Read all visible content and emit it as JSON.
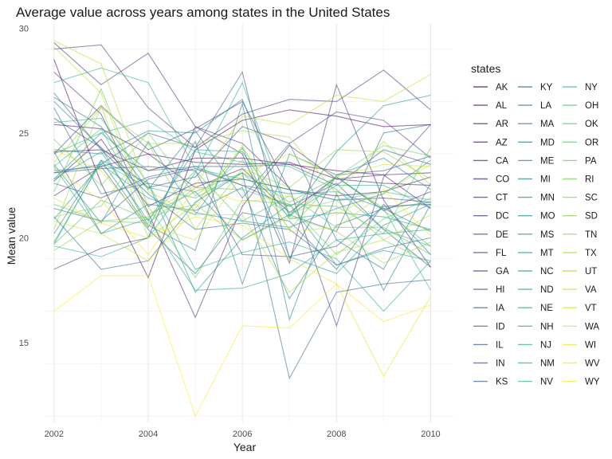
{
  "chart_data": {
    "type": "line",
    "title": "Average value across years among states in the United States",
    "xlabel": "Year",
    "ylabel": "Mean value",
    "x": [
      2002,
      2003,
      2004,
      2005,
      2006,
      2007,
      2008,
      2009,
      2010
    ],
    "x_ticks": [
      2002,
      2004,
      2006,
      2008,
      2010
    ],
    "y_ticks": [
      15,
      20,
      25,
      30
    ],
    "xlim": [
      2001.8,
      2010.5
    ],
    "ylim": [
      11.2,
      30.2
    ],
    "grid": true,
    "legend": {
      "title": "states",
      "placement": "right",
      "columns": 3
    },
    "series": [
      {
        "name": "AK",
        "values": [
          28.5,
          22.6,
          18.1,
          24.2,
          25.6,
          26.1,
          25.8,
          25.3,
          25.4
        ]
      },
      {
        "name": "AL",
        "values": [
          24.1,
          24.2,
          23.2,
          23.8,
          23.8,
          23.5,
          23.2,
          23.0,
          23.1
        ]
      },
      {
        "name": "AR",
        "values": [
          25.4,
          25.2,
          24.0,
          23.6,
          23.5,
          23.6,
          22.8,
          22.6,
          22.5
        ]
      },
      {
        "name": "AZ",
        "values": [
          22.7,
          24.7,
          21.5,
          22.6,
          22.8,
          22.3,
          22.0,
          22.2,
          22.9
        ]
      },
      {
        "name": "CA",
        "values": [
          22.0,
          23.4,
          24.0,
          22.4,
          23.3,
          21.2,
          22.9,
          21.3,
          22.2
        ]
      },
      {
        "name": "CO",
        "values": [
          27.9,
          25.9,
          21.2,
          16.2,
          21.5,
          24.4,
          22.8,
          23.0,
          21.4
        ]
      },
      {
        "name": "CT",
        "values": [
          29.3,
          27.3,
          28.8,
          25.3,
          24.0,
          18.8,
          27.3,
          21.8,
          18.6
        ]
      },
      {
        "name": "DC",
        "values": [
          29.0,
          29.2,
          26.2,
          24.3,
          25.9,
          26.6,
          26.5,
          28.0,
          26.1
        ]
      },
      {
        "name": "DE",
        "values": [
          18.5,
          19.5,
          20.0,
          25.3,
          24.5,
          22.4,
          15.8,
          22.9,
          25.4
        ]
      },
      {
        "name": "FL",
        "values": [
          24.0,
          26.3,
          24.2,
          25.2,
          26.5,
          22.3,
          21.8,
          21.9,
          21.7
        ]
      },
      {
        "name": "GA",
        "values": [
          25.7,
          24.3,
          22.4,
          22.9,
          25.3,
          24.5,
          26.0,
          25.6,
          23.8
        ]
      },
      {
        "name": "HI",
        "values": [
          23.1,
          23.3,
          23.4,
          23.2,
          19.2,
          19.1,
          19.6,
          21.5,
          21.6
        ]
      },
      {
        "name": "IA",
        "values": [
          22.6,
          21.9,
          22.9,
          23.4,
          23.4,
          23.5,
          22.5,
          24.2,
          23.5
        ]
      },
      {
        "name": "ID",
        "values": [
          21.4,
          20.8,
          22.8,
          23.3,
          22.5,
          21.5,
          22.6,
          20.4,
          18.6
        ]
      },
      {
        "name": "IL",
        "values": [
          23.1,
          23.5,
          25.0,
          24.3,
          27.9,
          19.0,
          23.0,
          23.2,
          23.9
        ]
      },
      {
        "name": "IN",
        "values": [
          26.9,
          24.2,
          22.1,
          20.4,
          20.7,
          20.4,
          18.7,
          19.5,
          20.0
        ]
      },
      {
        "name": "KS",
        "values": [
          21.0,
          18.5,
          18.9,
          21.7,
          23.1,
          13.3,
          17.4,
          17.8,
          18.0
        ]
      },
      {
        "name": "KY",
        "values": [
          23.2,
          23.4,
          20.4,
          18.3,
          21.2,
          20.8,
          18.5,
          21.6,
          19.2
        ]
      },
      {
        "name": "LA",
        "values": [
          26.2,
          22.1,
          22.6,
          22.2,
          19.9,
          21.1,
          20.3,
          25.0,
          25.4
        ]
      },
      {
        "name": "MA",
        "values": [
          26.7,
          25.3,
          22.3,
          25.1,
          21.9,
          24.5,
          19.9,
          18.5,
          22.6
        ]
      },
      {
        "name": "MD",
        "values": [
          24.1,
          20.2,
          21.6,
          21.3,
          22.4,
          17.1,
          20.6,
          21.4,
          20.3
        ]
      },
      {
        "name": "ME",
        "values": [
          26.5,
          24.3,
          20.6,
          19.4,
          26.4,
          16.1,
          22.1,
          17.5,
          21.6
        ]
      },
      {
        "name": "MI",
        "values": [
          20.2,
          23.7,
          20.5,
          24.6,
          17.8,
          24.0,
          23.0,
          23.8,
          22.3
        ]
      },
      {
        "name": "MN",
        "values": [
          24.2,
          24.0,
          25.1,
          25.0,
          26.6,
          21.0,
          24.1,
          26.3,
          26.8
        ]
      },
      {
        "name": "MO",
        "values": [
          23.5,
          20.7,
          24.6,
          21.2,
          20.8,
          20.5,
          21.4,
          22.1,
          23.7
        ]
      },
      {
        "name": "MS",
        "values": [
          22.8,
          25.0,
          23.2,
          23.4,
          22.5,
          22.1,
          22.2,
          21.4,
          21.7
        ]
      },
      {
        "name": "MT",
        "values": [
          19.7,
          23.7,
          22.6,
          17.4,
          20.0,
          21.6,
          18.7,
          19.4,
          18.9
        ]
      },
      {
        "name": "NC",
        "values": [
          20.9,
          23.5,
          21.9,
          21.1,
          24.3,
          19.1,
          18.3,
          20.6,
          21.6
        ]
      },
      {
        "name": "ND",
        "values": [
          22.8,
          24.1,
          20.8,
          24.2,
          24.1,
          20.9,
          21.2,
          21.0,
          20.4
        ]
      },
      {
        "name": "NE",
        "values": [
          23.4,
          20.2,
          20.9,
          17.5,
          17.6,
          18.3,
          19.9,
          20.2,
          20.4
        ]
      },
      {
        "name": "NH",
        "values": [
          19.6,
          19.1,
          20.0,
          23.1,
          27.4,
          21.1,
          22.5,
          22.5,
          21.4
        ]
      },
      {
        "name": "NJ",
        "values": [
          25.5,
          25.7,
          22.6,
          18.5,
          19.3,
          19.8,
          19.0,
          16.5,
          18.9
        ]
      },
      {
        "name": "NM",
        "values": [
          24.0,
          25.0,
          25.6,
          24.1,
          23.6,
          23.4,
          22.3,
          20.4,
          19.6
        ]
      },
      {
        "name": "NV",
        "values": [
          27.4,
          28.1,
          27.4,
          23.3,
          22.8,
          22.3,
          21.8,
          22.2,
          21.8
        ]
      },
      {
        "name": "NY",
        "values": [
          19.8,
          23.6,
          22.4,
          21.9,
          23.1,
          21.0,
          22.9,
          21.4,
          17.5
        ]
      },
      {
        "name": "OH",
        "values": [
          23.4,
          25.2,
          21.1,
          22.2,
          23.1,
          21.7,
          22.9,
          21.3,
          19.6
        ]
      },
      {
        "name": "OK",
        "values": [
          19.7,
          21.8,
          20.9,
          23.2,
          20.8,
          22.0,
          20.5,
          20.5,
          19.2
        ]
      },
      {
        "name": "OR",
        "values": [
          21.6,
          20.8,
          20.7,
          22.4,
          22.3,
          21.6,
          21.5,
          20.2,
          24.3
        ]
      },
      {
        "name": "PA",
        "values": [
          22.2,
          27.1,
          21.5,
          18.1,
          21.8,
          21.6,
          19.2,
          20.9,
          21.9
        ]
      },
      {
        "name": "RI",
        "values": [
          24.7,
          22.5,
          25.0,
          22.0,
          23.7,
          20.4,
          22.9,
          24.4,
          23.9
        ]
      },
      {
        "name": "SC",
        "values": [
          19.4,
          20.8,
          21.0,
          21.6,
          24.3,
          21.2,
          21.8,
          19.9,
          18.8
        ]
      },
      {
        "name": "SD",
        "values": [
          21.0,
          21.5,
          24.5,
          20.4,
          23.3,
          22.4,
          24.2,
          24.1,
          22.8
        ]
      },
      {
        "name": "TN",
        "values": [
          20.4,
          26.3,
          20.0,
          21.6,
          19.9,
          21.0,
          20.3,
          18.8,
          19.8
        ]
      },
      {
        "name": "TX",
        "values": [
          23.6,
          26.2,
          24.5,
          24.5,
          25.1,
          24.8,
          22.1,
          24.6,
          22.5
        ]
      },
      {
        "name": "UT",
        "values": [
          29.4,
          28.3,
          22.2,
          21.1,
          21.1,
          17.4,
          19.3,
          19.9,
          21.1
        ]
      },
      {
        "name": "VA",
        "values": [
          29.1,
          26.9,
          21.1,
          22.5,
          25.8,
          25.4,
          26.8,
          26.5,
          27.8
        ]
      },
      {
        "name": "VT",
        "values": [
          20.8,
          20.2,
          18.9,
          21.4,
          24.4,
          20.3,
          20.5,
          22.1,
          23.5
        ]
      },
      {
        "name": "WA",
        "values": [
          24.2,
          23.2,
          20.6,
          19.9,
          23.0,
          24.0,
          22.9,
          23.5,
          23.4
        ]
      },
      {
        "name": "WI",
        "values": [
          21.9,
          20.7,
          20.0,
          21.0,
          20.6,
          19.0,
          17.8,
          13.4,
          17.2
        ]
      },
      {
        "name": "WV",
        "values": [
          23.3,
          21.8,
          19.2,
          22.4,
          21.7,
          22.0,
          21.1,
          22.3,
          20.1
        ]
      },
      {
        "name": "WY",
        "values": [
          16.5,
          18.2,
          18.2,
          11.5,
          15.8,
          15.7,
          17.8,
          16.0,
          16.8
        ]
      }
    ]
  }
}
